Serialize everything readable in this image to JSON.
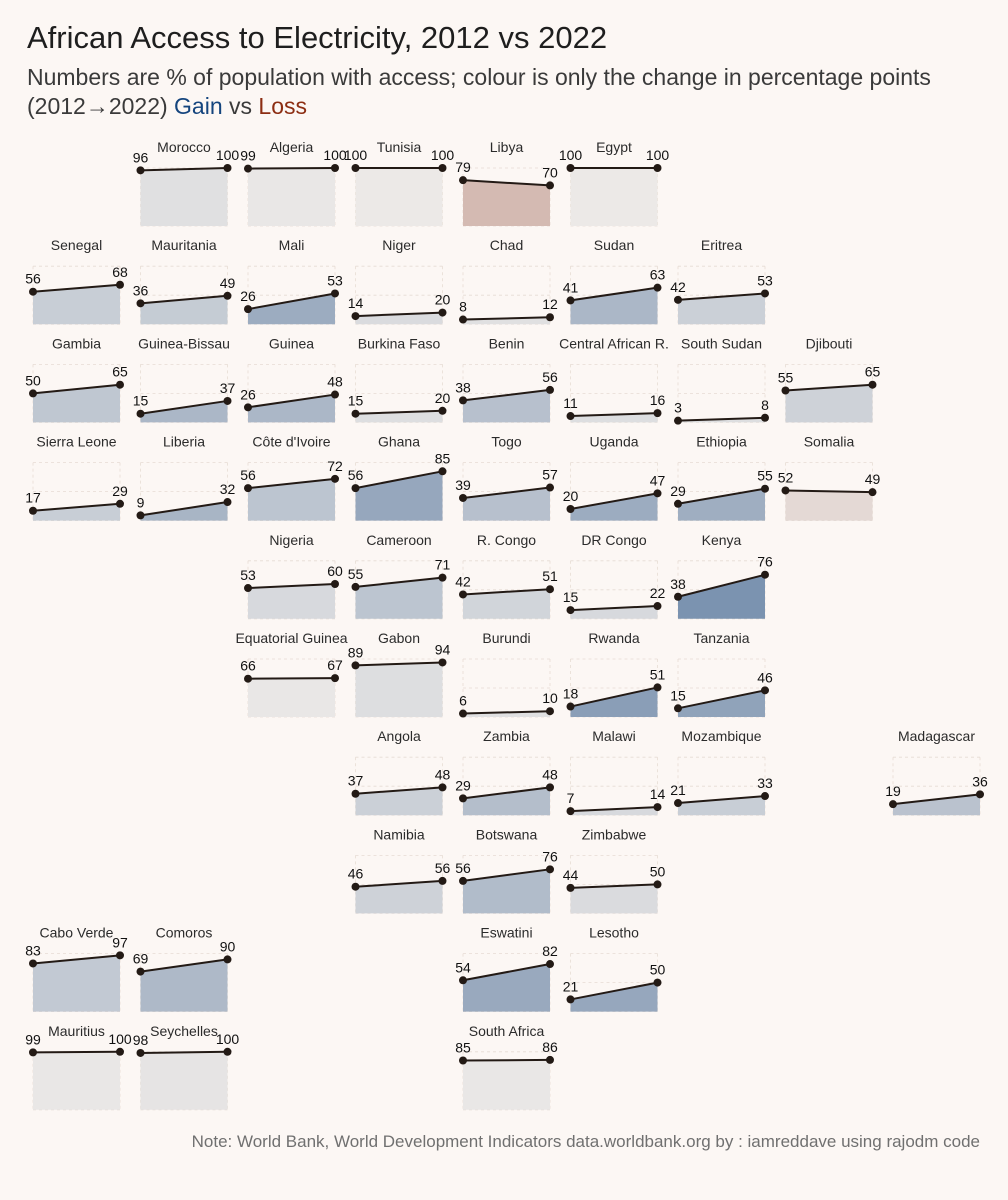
{
  "title": "African Access to Electricity, 2012 vs 2022",
  "subtitle": {
    "line1": "Numbers are % of population with access; colour is only the change in percentage points",
    "line2_prefix": "(2012→2022) ",
    "gain_label": "Gain",
    "vs_label": " vs ",
    "loss_label": "Loss"
  },
  "caption": "Note: World Bank, World Development Indicators data.worldbank.org by : iamreddave using rajodm code",
  "colors": {
    "background": "#fcf7f4",
    "gain": "#14447d",
    "loss": "#8c2d12",
    "neutral": "#ece9e7",
    "line": "#231a15",
    "grid": "#e6dcd4"
  },
  "chart_data": {
    "type": "area",
    "layout": "geofacet grid of small multiples",
    "x": [
      "2012",
      "2022"
    ],
    "ylim": [
      0,
      100
    ],
    "fill_encodes": "change in percentage points (2022 minus 2012)",
    "panels": [
      {
        "name": "Morocco",
        "row": 0,
        "col": 1,
        "values": [
          96,
          100
        ]
      },
      {
        "name": "Algeria",
        "row": 0,
        "col": 2,
        "values": [
          99,
          100
        ]
      },
      {
        "name": "Tunisia",
        "row": 0,
        "col": 3,
        "values": [
          100,
          100
        ]
      },
      {
        "name": "Libya",
        "row": 0,
        "col": 4,
        "values": [
          79,
          70
        ]
      },
      {
        "name": "Egypt",
        "row": 0,
        "col": 5,
        "values": [
          100,
          100
        ]
      },
      {
        "name": "Senegal",
        "row": 1,
        "col": 0,
        "values": [
          56,
          68
        ]
      },
      {
        "name": "Mauritania",
        "row": 1,
        "col": 1,
        "values": [
          36,
          49
        ]
      },
      {
        "name": "Mali",
        "row": 1,
        "col": 2,
        "values": [
          26,
          53
        ]
      },
      {
        "name": "Niger",
        "row": 1,
        "col": 3,
        "values": [
          14,
          20
        ]
      },
      {
        "name": "Chad",
        "row": 1,
        "col": 4,
        "values": [
          8,
          12
        ]
      },
      {
        "name": "Sudan",
        "row": 1,
        "col": 5,
        "values": [
          41,
          63
        ]
      },
      {
        "name": "Eritrea",
        "row": 1,
        "col": 6,
        "values": [
          42,
          53
        ]
      },
      {
        "name": "Gambia",
        "row": 2,
        "col": 0,
        "values": [
          50,
          65
        ]
      },
      {
        "name": "Guinea-Bissau",
        "row": 2,
        "col": 1,
        "values": [
          15,
          37
        ]
      },
      {
        "name": "Guinea",
        "row": 2,
        "col": 2,
        "values": [
          26,
          48
        ]
      },
      {
        "name": "Burkina Faso",
        "row": 2,
        "col": 3,
        "values": [
          15,
          20
        ]
      },
      {
        "name": "Benin",
        "row": 2,
        "col": 4,
        "values": [
          38,
          56
        ]
      },
      {
        "name": "Central African R.",
        "row": 2,
        "col": 5,
        "values": [
          11,
          16
        ]
      },
      {
        "name": "South Sudan",
        "row": 2,
        "col": 6,
        "values": [
          3,
          8
        ]
      },
      {
        "name": "Djibouti",
        "row": 2,
        "col": 7,
        "values": [
          55,
          65
        ]
      },
      {
        "name": "Sierra Leone",
        "row": 3,
        "col": 0,
        "values": [
          17,
          29
        ]
      },
      {
        "name": "Liberia",
        "row": 3,
        "col": 1,
        "values": [
          9,
          32
        ]
      },
      {
        "name": "Côte d'Ivoire",
        "row": 3,
        "col": 2,
        "values": [
          56,
          72
        ]
      },
      {
        "name": "Ghana",
        "row": 3,
        "col": 3,
        "values": [
          56,
          85
        ]
      },
      {
        "name": "Togo",
        "row": 3,
        "col": 4,
        "values": [
          39,
          57
        ]
      },
      {
        "name": "Uganda",
        "row": 3,
        "col": 5,
        "values": [
          20,
          47
        ]
      },
      {
        "name": "Ethiopia",
        "row": 3,
        "col": 6,
        "values": [
          29,
          55
        ]
      },
      {
        "name": "Somalia",
        "row": 3,
        "col": 7,
        "values": [
          52,
          49
        ]
      },
      {
        "name": "Nigeria",
        "row": 4,
        "col": 2,
        "values": [
          53,
          60
        ]
      },
      {
        "name": "Cameroon",
        "row": 4,
        "col": 3,
        "values": [
          55,
          71
        ]
      },
      {
        "name": "R. Congo",
        "row": 4,
        "col": 4,
        "values": [
          42,
          51
        ]
      },
      {
        "name": "DR Congo",
        "row": 4,
        "col": 5,
        "values": [
          15,
          22
        ]
      },
      {
        "name": "Kenya",
        "row": 4,
        "col": 6,
        "values": [
          38,
          76
        ]
      },
      {
        "name": "Equatorial Guinea",
        "row": 5,
        "col": 2,
        "values": [
          66,
          67
        ]
      },
      {
        "name": "Gabon",
        "row": 5,
        "col": 3,
        "values": [
          89,
          94
        ]
      },
      {
        "name": "Burundi",
        "row": 5,
        "col": 4,
        "values": [
          6,
          10
        ]
      },
      {
        "name": "Rwanda",
        "row": 5,
        "col": 5,
        "values": [
          18,
          51
        ]
      },
      {
        "name": "Tanzania",
        "row": 5,
        "col": 6,
        "values": [
          15,
          46
        ]
      },
      {
        "name": "Angola",
        "row": 6,
        "col": 3,
        "values": [
          37,
          48
        ]
      },
      {
        "name": "Zambia",
        "row": 6,
        "col": 4,
        "values": [
          29,
          48
        ]
      },
      {
        "name": "Malawi",
        "row": 6,
        "col": 5,
        "values": [
          7,
          14
        ]
      },
      {
        "name": "Mozambique",
        "row": 6,
        "col": 6,
        "values": [
          21,
          33
        ]
      },
      {
        "name": "Madagascar",
        "row": 6,
        "col": 8,
        "values": [
          19,
          36
        ]
      },
      {
        "name": "Namibia",
        "row": 7,
        "col": 3,
        "values": [
          46,
          56
        ]
      },
      {
        "name": "Botswana",
        "row": 7,
        "col": 4,
        "values": [
          56,
          76
        ]
      },
      {
        "name": "Zimbabwe",
        "row": 7,
        "col": 5,
        "values": [
          44,
          50
        ]
      },
      {
        "name": "Cabo Verde",
        "row": 8,
        "col": 0,
        "values": [
          83,
          97
        ]
      },
      {
        "name": "Comoros",
        "row": 8,
        "col": 1,
        "values": [
          69,
          90
        ]
      },
      {
        "name": "Eswatini",
        "row": 8,
        "col": 4,
        "values": [
          54,
          82
        ]
      },
      {
        "name": "Lesotho",
        "row": 8,
        "col": 5,
        "values": [
          21,
          50
        ]
      },
      {
        "name": "Mauritius",
        "row": 9,
        "col": 0,
        "values": [
          99,
          100
        ]
      },
      {
        "name": "Seychelles",
        "row": 9,
        "col": 1,
        "values": [
          98,
          100
        ]
      },
      {
        "name": "South Africa",
        "row": 9,
        "col": 4,
        "values": [
          85,
          86
        ]
      }
    ]
  }
}
